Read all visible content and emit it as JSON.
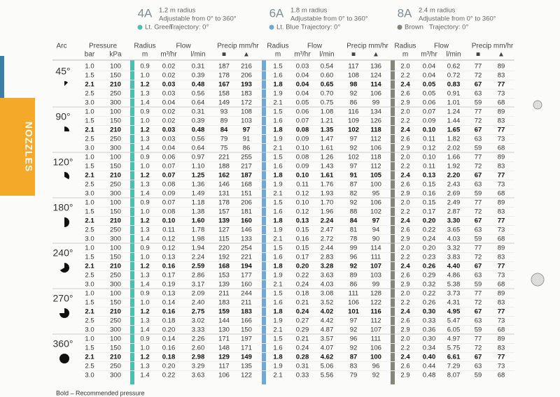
{
  "header": {
    "nozzles": [
      {
        "code": "4A",
        "radius": "1.2 m radius",
        "adjust": "Adjustable from 0° to 360°",
        "color": "Lt. Green",
        "trajectory": "Trajectory: 0°",
        "swatch": "#4bbfb0"
      },
      {
        "code": "6A",
        "radius": "1.8 m radius",
        "adjust": "Adjustable from 0° to 360°",
        "color": "Lt. Blue",
        "trajectory": "Trajectory: 0°",
        "swatch": "#6fa9d8"
      },
      {
        "code": "8A",
        "radius": "2.4 m radius",
        "adjust": "Adjustable from 0° to 360°",
        "color": "Brown",
        "trajectory": "Trajectory: 0°",
        "swatch": "#85857a"
      }
    ]
  },
  "side_tab": "NOZZLES",
  "columns": {
    "arc": "Arc",
    "pressure": "Pressure",
    "bar": "bar",
    "kpa": "kPa",
    "radius": "Radius",
    "m": "m",
    "flow": "Flow",
    "m3": "m³/hr",
    "lmin": "l/min",
    "precip": "Precip mm/hr",
    "square": "■",
    "triangle": "▲"
  },
  "groups": [
    {
      "arc": "45°",
      "rows": [
        [
          "1.0",
          "100",
          "0.9",
          "0.02",
          "0.31",
          "187",
          "216",
          "1.5",
          "0.03",
          "0.54",
          "117",
          "136",
          "2.0",
          "0.04",
          "0.62",
          "77",
          "89"
        ],
        [
          "1.5",
          "150",
          "1.0",
          "0.02",
          "0.39",
          "178",
          "206",
          "1.6",
          "0.04",
          "0.60",
          "108",
          "124",
          "2.2",
          "0.04",
          "0.72",
          "72",
          "83"
        ],
        [
          "2.1",
          "210",
          "1.2",
          "0.03",
          "0.48",
          "167",
          "193",
          "1.8",
          "0.04",
          "0.65",
          "98",
          "114",
          "2.4",
          "0.05",
          "0.83",
          "67",
          "77"
        ],
        [
          "2.5",
          "250",
          "1.3",
          "0.03",
          "0.56",
          "158",
          "183",
          "1.9",
          "0.04",
          "0.70",
          "92",
          "106",
          "2.6",
          "0.05",
          "0.91",
          "63",
          "73"
        ],
        [
          "3.0",
          "300",
          "1.4",
          "0.04",
          "0.64",
          "149",
          "172",
          "2.1",
          "0.05",
          "0.75",
          "86",
          "99",
          "2.9",
          "0.06",
          "1.01",
          "59",
          "68"
        ]
      ]
    },
    {
      "arc": "90°",
      "rows": [
        [
          "1.0",
          "100",
          "0.9",
          "0.02",
          "0.31",
          "93",
          "108",
          "1.5",
          "0.06",
          "1.08",
          "116",
          "134",
          "2.0",
          "0.07",
          "1.24",
          "77",
          "89"
        ],
        [
          "1.5",
          "150",
          "1.0",
          "0.02",
          "0.39",
          "89",
          "103",
          "1.6",
          "0.07",
          "1.21",
          "109",
          "126",
          "2.2",
          "0.09",
          "1.44",
          "72",
          "83"
        ],
        [
          "2.1",
          "210",
          "1.2",
          "0.03",
          "0.48",
          "84",
          "97",
          "1.8",
          "0.08",
          "1.35",
          "102",
          "118",
          "2.4",
          "0.10",
          "1.65",
          "67",
          "77"
        ],
        [
          "2.5",
          "250",
          "1.3",
          "0.03",
          "0.56",
          "79",
          "91",
          "1.9",
          "0.09",
          "1.47",
          "97",
          "112",
          "2.6",
          "0.11",
          "1.82",
          "63",
          "73"
        ],
        [
          "3.0",
          "300",
          "1.4",
          "0.04",
          "0.64",
          "75",
          "86",
          "2.1",
          "0.10",
          "1.61",
          "92",
          "106",
          "2.9",
          "0.12",
          "2.02",
          "59",
          "68"
        ]
      ]
    },
    {
      "arc": "120°",
      "rows": [
        [
          "1.0",
          "100",
          "0.9",
          "0.06",
          "0.97",
          "221",
          "255",
          "1.5",
          "0.08",
          "1.26",
          "102",
          "118",
          "2.0",
          "0.10",
          "1.66",
          "77",
          "89"
        ],
        [
          "1.5",
          "150",
          "1.0",
          "0.07",
          "1.10",
          "188",
          "217",
          "1.6",
          "0.09",
          "1.43",
          "97",
          "112",
          "2.2",
          "0.11",
          "1.92",
          "72",
          "83"
        ],
        [
          "2.1",
          "210",
          "1.2",
          "0.07",
          "1.25",
          "162",
          "187",
          "1.8",
          "0.10",
          "1.61",
          "91",
          "105",
          "2.4",
          "0.13",
          "2.20",
          "67",
          "77"
        ],
        [
          "2.5",
          "250",
          "1.3",
          "0.08",
          "1.36",
          "146",
          "168",
          "1.9",
          "0.11",
          "1.76",
          "87",
          "100",
          "2.6",
          "0.15",
          "2.43",
          "63",
          "73"
        ],
        [
          "3.0",
          "300",
          "1.4",
          "0.09",
          "1.49",
          "131",
          "151",
          "2.1",
          "0.12",
          "1.93",
          "82",
          "95",
          "2.9",
          "0.16",
          "2.69",
          "59",
          "68"
        ]
      ]
    },
    {
      "arc": "180°",
      "rows": [
        [
          "1.0",
          "100",
          "0.9",
          "0.07",
          "1.18",
          "178",
          "206",
          "1.5",
          "0.10",
          "1.70",
          "92",
          "106",
          "2.0",
          "0.15",
          "2.49",
          "77",
          "89"
        ],
        [
          "1.5",
          "150",
          "1.0",
          "0.08",
          "1.38",
          "157",
          "181",
          "1.6",
          "0.12",
          "1.96",
          "88",
          "102",
          "2.2",
          "0.17",
          "2.87",
          "72",
          "83"
        ],
        [
          "2.1",
          "210",
          "1.2",
          "0.10",
          "1.60",
          "139",
          "160",
          "1.8",
          "0.13",
          "2.24",
          "84",
          "97",
          "2.4",
          "0.20",
          "3.30",
          "67",
          "77"
        ],
        [
          "2.5",
          "250",
          "1.3",
          "0.11",
          "1.78",
          "127",
          "146",
          "1.9",
          "0.15",
          "2.47",
          "81",
          "94",
          "2.6",
          "0.22",
          "3.65",
          "63",
          "73"
        ],
        [
          "3.0",
          "300",
          "1.4",
          "0.12",
          "1.98",
          "115",
          "133",
          "2.1",
          "0.16",
          "2.72",
          "78",
          "90",
          "2.9",
          "0.24",
          "4.03",
          "59",
          "68"
        ]
      ]
    },
    {
      "arc": "240°",
      "rows": [
        [
          "1.0",
          "100",
          "0.9",
          "0.12",
          "1.94",
          "220",
          "254",
          "1.5",
          "0.15",
          "2.44",
          "99",
          "114",
          "2.0",
          "0.20",
          "3.32",
          "77",
          "89"
        ],
        [
          "1.5",
          "150",
          "1.0",
          "0.13",
          "2.24",
          "192",
          "221",
          "1.6",
          "0.17",
          "2.83",
          "96",
          "111",
          "2.2",
          "0.23",
          "3.83",
          "72",
          "83"
        ],
        [
          "2.1",
          "210",
          "1.2",
          "0.16",
          "2.59",
          "168",
          "194",
          "1.8",
          "0.20",
          "3.28",
          "92",
          "107",
          "2.4",
          "0.26",
          "4.40",
          "67",
          "77"
        ],
        [
          "2.5",
          "250",
          "1.3",
          "0.17",
          "2.86",
          "153",
          "177",
          "1.9",
          "0.22",
          "3.63",
          "89",
          "103",
          "2.6",
          "0.29",
          "4.86",
          "63",
          "73"
        ],
        [
          "3.0",
          "300",
          "1.4",
          "0.19",
          "3.17",
          "139",
          "160",
          "2.1",
          "0.24",
          "4.03",
          "86",
          "99",
          "2.9",
          "0.32",
          "5.38",
          "59",
          "68"
        ]
      ]
    },
    {
      "arc": "270°",
      "rows": [
        [
          "1.0",
          "100",
          "0.9",
          "0.13",
          "2.09",
          "211",
          "244",
          "1.5",
          "0.18",
          "3.08",
          "111",
          "128",
          "2.0",
          "0.22",
          "3.73",
          "77",
          "89"
        ],
        [
          "1.5",
          "150",
          "1.0",
          "0.14",
          "2.40",
          "183",
          "211",
          "1.6",
          "0.21",
          "3.52",
          "106",
          "122",
          "2.2",
          "0.26",
          "4.31",
          "72",
          "83"
        ],
        [
          "2.1",
          "210",
          "1.2",
          "0.16",
          "2.75",
          "159",
          "183",
          "1.8",
          "0.24",
          "4.02",
          "101",
          "116",
          "2.4",
          "0.30",
          "4.95",
          "67",
          "77"
        ],
        [
          "2.5",
          "250",
          "1.3",
          "0.18",
          "3.02",
          "144",
          "166",
          "1.9",
          "0.27",
          "4.42",
          "97",
          "112",
          "2.6",
          "0.33",
          "5.47",
          "63",
          "73"
        ],
        [
          "3.0",
          "300",
          "1.4",
          "0.20",
          "3.33",
          "130",
          "150",
          "2.1",
          "0.29",
          "4.87",
          "92",
          "107",
          "2.9",
          "0.36",
          "6.05",
          "59",
          "68"
        ]
      ]
    },
    {
      "arc": "360°",
      "rows": [
        [
          "1.0",
          "100",
          "0.9",
          "0.14",
          "2.26",
          "171",
          "197",
          "1.5",
          "0.21",
          "3.57",
          "96",
          "111",
          "2.0",
          "0.30",
          "4.97",
          "77",
          "89"
        ],
        [
          "1.5",
          "150",
          "1.0",
          "0.16",
          "2.60",
          "148",
          "171",
          "1.6",
          "0.24",
          "4.07",
          "92",
          "106",
          "2.2",
          "0.34",
          "5.75",
          "72",
          "83"
        ],
        [
          "2.1",
          "210",
          "1.2",
          "0.18",
          "2.98",
          "129",
          "149",
          "1.8",
          "0.28",
          "4.62",
          "87",
          "100",
          "2.4",
          "0.40",
          "6.61",
          "67",
          "77"
        ],
        [
          "2.5",
          "250",
          "1.3",
          "0.20",
          "3.29",
          "117",
          "135",
          "1.9",
          "0.31",
          "5.06",
          "83",
          "96",
          "2.6",
          "0.44",
          "7.29",
          "63",
          "73"
        ],
        [
          "3.0",
          "300",
          "1.4",
          "0.22",
          "3.63",
          "106",
          "122",
          "2.1",
          "0.33",
          "5.56",
          "79",
          "92",
          "2.9",
          "0.48",
          "8.07",
          "59",
          "68"
        ]
      ]
    }
  ],
  "footer": "Bold – Recommended pressure"
}
